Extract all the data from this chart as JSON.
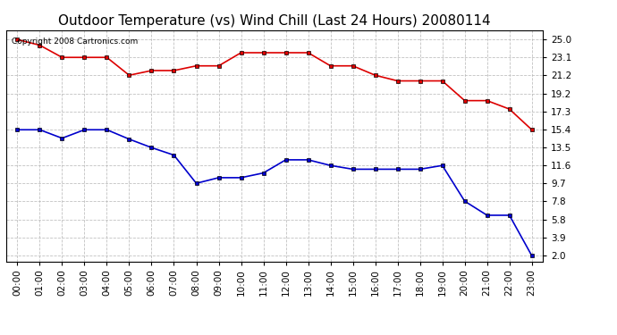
{
  "title": "Outdoor Temperature (vs) Wind Chill (Last 24 Hours) 20080114",
  "copyright": "Copyright 2008 Cartronics.com",
  "x_labels": [
    "00:00",
    "01:00",
    "02:00",
    "03:00",
    "04:00",
    "05:00",
    "06:00",
    "07:00",
    "08:00",
    "09:00",
    "10:00",
    "11:00",
    "12:00",
    "13:00",
    "14:00",
    "15:00",
    "16:00",
    "17:00",
    "18:00",
    "19:00",
    "20:00",
    "21:00",
    "22:00",
    "23:00"
  ],
  "temp_values": [
    25.0,
    24.4,
    23.1,
    23.1,
    23.1,
    21.2,
    21.7,
    21.7,
    22.2,
    22.2,
    23.6,
    23.6,
    23.6,
    23.6,
    22.2,
    22.2,
    21.2,
    20.6,
    20.6,
    20.6,
    18.5,
    18.5,
    17.6,
    15.4
  ],
  "wind_chill_values": [
    15.4,
    15.4,
    14.5,
    15.4,
    15.4,
    14.4,
    13.5,
    12.7,
    9.7,
    10.3,
    10.3,
    10.8,
    12.2,
    12.2,
    11.6,
    11.2,
    11.2,
    11.2,
    11.2,
    11.6,
    7.8,
    6.3,
    6.3,
    2.0
  ],
  "temp_color": "#dd0000",
  "wind_chill_color": "#0000cc",
  "background_color": "#ffffff",
  "grid_color": "#bbbbbb",
  "yticks": [
    2.0,
    3.9,
    5.8,
    7.8,
    9.7,
    11.6,
    13.5,
    15.4,
    17.3,
    19.2,
    21.2,
    23.1,
    25.0
  ],
  "ylim": [
    1.4,
    26.0
  ],
  "marker": "s",
  "marker_size": 3,
  "linewidth": 1.2,
  "title_fontsize": 11,
  "tick_fontsize": 7.5,
  "copyright_fontsize": 6.5
}
